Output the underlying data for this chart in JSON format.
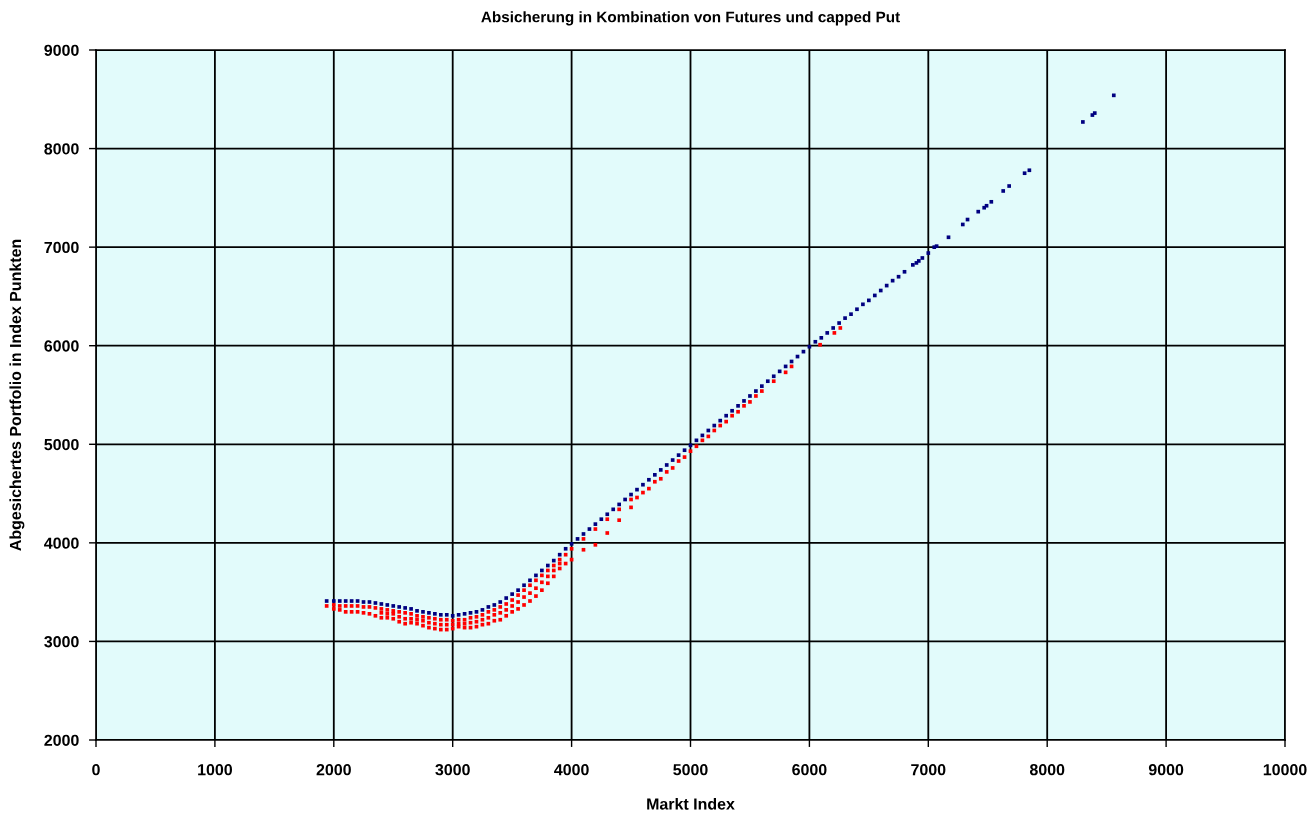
{
  "chart_data": {
    "type": "scatter",
    "title": "Absicherung in Kombination von Futures und capped Put",
    "xlabel": "Markt Index",
    "ylabel": "Abgesichertes Portfolio in Index Punkten",
    "xlim": [
      0,
      10000
    ],
    "ylim": [
      2000,
      9000
    ],
    "xticks": [
      0,
      1000,
      2000,
      3000,
      4000,
      5000,
      6000,
      7000,
      8000,
      9000,
      10000
    ],
    "yticks": [
      2000,
      3000,
      4000,
      5000,
      6000,
      7000,
      8000,
      9000
    ],
    "grid": true,
    "marker": "square",
    "series": [
      {
        "color": "#ff0000",
        "x": [
          1940,
          2000,
          2000,
          2050,
          2050,
          2100,
          2100,
          2150,
          2150,
          2200,
          2200,
          2250,
          2250,
          2300,
          2300,
          2350,
          2350,
          2400,
          2400,
          2400,
          2450,
          2450,
          2450,
          2500,
          2500,
          2500,
          2550,
          2550,
          2550,
          2600,
          2600,
          2600,
          2650,
          2650,
          2650,
          2700,
          2700,
          2700,
          2750,
          2750,
          2750,
          2800,
          2800,
          2800,
          2850,
          2850,
          2850,
          2900,
          2900,
          2900,
          2950,
          2950,
          2950,
          3000,
          3000,
          3000,
          3050,
          3050,
          3050,
          3100,
          3100,
          3100,
          3150,
          3150,
          3150,
          3200,
          3200,
          3200,
          3250,
          3250,
          3250,
          3300,
          3300,
          3300,
          3350,
          3350,
          3350,
          3400,
          3400,
          3400,
          3450,
          3450,
          3450,
          3500,
          3500,
          3500,
          3550,
          3550,
          3550,
          3600,
          3600,
          3600,
          3650,
          3650,
          3650,
          3700,
          3700,
          3700,
          3750,
          3750,
          3750,
          3800,
          3800,
          3800,
          3850,
          3850,
          3850,
          3900,
          3900,
          3900,
          3950,
          3950,
          4000,
          4000,
          4100,
          4100,
          4200,
          4200,
          4300,
          4300,
          4400,
          4400,
          4500,
          4500,
          4550,
          4600,
          4650,
          4700,
          4750,
          4800,
          4850,
          4900,
          4950,
          5000,
          5050,
          5100,
          5150,
          5200,
          5250,
          5300,
          5350,
          5400,
          5450,
          5500,
          5550,
          5600,
          5700,
          5800,
          5850,
          6090,
          6210,
          6260
        ],
        "values": [
          3360,
          3370,
          3330,
          3360,
          3320,
          3360,
          3300,
          3360,
          3300,
          3360,
          3300,
          3350,
          3290,
          3350,
          3280,
          3340,
          3260,
          3330,
          3290,
          3240,
          3320,
          3280,
          3240,
          3310,
          3280,
          3230,
          3300,
          3250,
          3200,
          3290,
          3230,
          3180,
          3280,
          3230,
          3190,
          3260,
          3220,
          3180,
          3250,
          3210,
          3160,
          3240,
          3190,
          3140,
          3230,
          3180,
          3130,
          3220,
          3170,
          3120,
          3220,
          3170,
          3120,
          3210,
          3170,
          3130,
          3220,
          3180,
          3150,
          3220,
          3180,
          3140,
          3240,
          3190,
          3140,
          3250,
          3200,
          3150,
          3270,
          3220,
          3170,
          3300,
          3240,
          3180,
          3320,
          3270,
          3210,
          3350,
          3290,
          3220,
          3380,
          3320,
          3260,
          3420,
          3360,
          3300,
          3470,
          3400,
          3330,
          3520,
          3450,
          3370,
          3570,
          3490,
          3410,
          3620,
          3540,
          3460,
          3670,
          3600,
          3520,
          3720,
          3660,
          3590,
          3770,
          3720,
          3660,
          3830,
          3790,
          3740,
          3880,
          3790,
          3940,
          3830,
          4040,
          3930,
          4140,
          3980,
          4240,
          4100,
          4340,
          4230,
          4440,
          4360,
          4460,
          4510,
          4550,
          4620,
          4650,
          4720,
          4760,
          4830,
          4870,
          4930,
          4980,
          5040,
          5080,
          5140,
          5190,
          5230,
          5290,
          5330,
          5390,
          5430,
          5490,
          5540,
          5640,
          5730,
          5790,
          6010,
          6130,
          6180
        ]
      },
      {
        "color": "#000080",
        "x": [
          1940,
          2000,
          2050,
          2100,
          2150,
          2200,
          2250,
          2300,
          2350,
          2400,
          2450,
          2500,
          2550,
          2600,
          2650,
          2700,
          2750,
          2800,
          2850,
          2900,
          2950,
          3000,
          3050,
          3100,
          3150,
          3200,
          3250,
          3300,
          3350,
          3400,
          3450,
          3500,
          3550,
          3600,
          3650,
          3700,
          3750,
          3800,
          3850,
          3900,
          3950,
          4000,
          4050,
          4100,
          4150,
          4200,
          4250,
          4300,
          4350,
          4400,
          4450,
          4500,
          4550,
          4600,
          4650,
          4700,
          4750,
          4800,
          4850,
          4900,
          4950,
          5000,
          5050,
          5100,
          5150,
          5200,
          5250,
          5300,
          5350,
          5400,
          5450,
          5500,
          5550,
          5600,
          5650,
          5700,
          5750,
          5800,
          5850,
          5900,
          5950,
          6000,
          6050,
          6100,
          6150,
          6200,
          6250,
          6300,
          6350,
          6400,
          6450,
          6500,
          6550,
          6600,
          6650,
          6700,
          6750,
          6800,
          6870,
          6900,
          6920,
          6950,
          7000,
          7050,
          7070,
          7170,
          7290,
          7330,
          7420,
          7470,
          7490,
          7530,
          7630,
          7680,
          7810,
          7850,
          8300,
          8380,
          8400,
          8560
        ],
        "values": [
          3410,
          3410,
          3410,
          3410,
          3410,
          3410,
          3400,
          3400,
          3390,
          3380,
          3370,
          3360,
          3350,
          3340,
          3330,
          3310,
          3300,
          3290,
          3280,
          3270,
          3270,
          3260,
          3270,
          3280,
          3290,
          3300,
          3320,
          3350,
          3370,
          3400,
          3440,
          3480,
          3520,
          3570,
          3620,
          3670,
          3720,
          3770,
          3820,
          3880,
          3940,
          3990,
          4040,
          4090,
          4140,
          4190,
          4240,
          4290,
          4340,
          4390,
          4440,
          4490,
          4540,
          4590,
          4640,
          4690,
          4740,
          4790,
          4840,
          4890,
          4940,
          4990,
          5040,
          5090,
          5140,
          5190,
          5240,
          5290,
          5340,
          5390,
          5440,
          5490,
          5540,
          5590,
          5640,
          5690,
          5740,
          5790,
          5840,
          5890,
          5940,
          5990,
          6040,
          6080,
          6130,
          6180,
          6230,
          6280,
          6320,
          6370,
          6420,
          6460,
          6510,
          6560,
          6610,
          6660,
          6700,
          6750,
          6820,
          6840,
          6860,
          6890,
          6940,
          7000,
          7010,
          7100,
          7230,
          7280,
          7360,
          7400,
          7420,
          7460,
          7570,
          7620,
          7750,
          7780,
          8270,
          8340,
          8360,
          8540
        ]
      }
    ]
  }
}
